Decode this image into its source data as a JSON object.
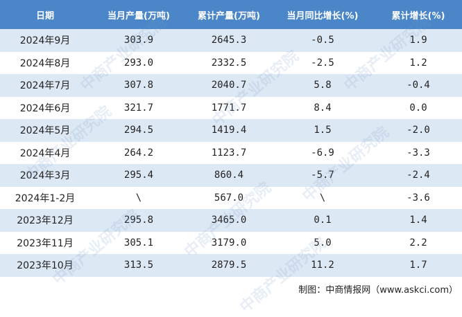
{
  "table": {
    "header": [
      "日期",
      "当月产量(万吨)",
      "累计产量(万吨)",
      "当月同比增长(%)",
      "累计增长(%)"
    ],
    "rows": [
      [
        "2024年9月",
        "303.9",
        "2645.3",
        "-0.5",
        "1.9"
      ],
      [
        "2024年8月",
        "293.0",
        "2332.5",
        "-2.5",
        "1.2"
      ],
      [
        "2024年7月",
        "307.8",
        "2040.7",
        "5.8",
        "-0.4"
      ],
      [
        "2024年6月",
        "321.7",
        "1771.7",
        "8.4",
        "0.0"
      ],
      [
        "2024年5月",
        "294.5",
        "1419.4",
        "1.5",
        "-2.0"
      ],
      [
        "2024年4月",
        "264.2",
        "1123.7",
        "-6.9",
        "-3.3"
      ],
      [
        "2024年3月",
        "295.4",
        "860.4",
        "-5.7",
        "-2.4"
      ],
      [
        "2024年1-2月",
        "\\",
        "567.0",
        "\\",
        "-3.6"
      ],
      [
        "2023年12月",
        "295.8",
        "3465.0",
        "0.1",
        "1.4"
      ],
      [
        "2023年11月",
        "305.1",
        "3179.0",
        "5.0",
        "2.2"
      ],
      [
        "2023年10月",
        "313.5",
        "2879.5",
        "11.2",
        "1.7"
      ]
    ]
  },
  "watermark": "中商产业研究院",
  "source": "制图：中商情报网（www.askci.com）"
}
